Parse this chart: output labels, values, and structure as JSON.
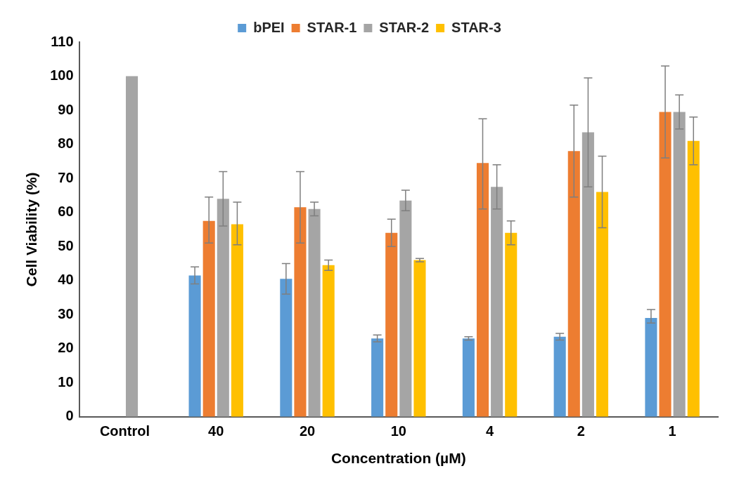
{
  "chart_data": {
    "type": "bar",
    "xlabel": "Concentration (µM)",
    "ylabel": "Cell Viability (%)",
    "categories": [
      "Control",
      "40",
      "20",
      "10",
      "4",
      "2",
      "1"
    ],
    "series": [
      {
        "name": "bPEI",
        "color": "#5b9bd5",
        "values": [
          null,
          41.5,
          40.5,
          23,
          23,
          23.5,
          29
        ],
        "errors": [
          null,
          [
            39,
            44
          ],
          [
            36,
            45
          ],
          [
            22,
            24
          ],
          [
            22.5,
            23.5
          ],
          [
            22.5,
            24.5
          ],
          [
            27.5,
            31.5
          ]
        ]
      },
      {
        "name": "STAR-1",
        "color": "#ed7d31",
        "values": [
          null,
          57.5,
          61.5,
          54,
          74.5,
          78,
          89.5
        ],
        "errors": [
          null,
          [
            51,
            64.5
          ],
          [
            51,
            72
          ],
          [
            50,
            58
          ],
          [
            61,
            87.5
          ],
          [
            64.5,
            91.5
          ],
          [
            76,
            103
          ]
        ]
      },
      {
        "name": "STAR-2",
        "color": "#a5a5a5",
        "values": [
          100,
          64,
          61,
          63.5,
          67.5,
          83.5,
          89.5
        ],
        "errors": [
          null,
          [
            56,
            72
          ],
          [
            59,
            63
          ],
          [
            60.5,
            66.5
          ],
          [
            61,
            74
          ],
          [
            67.5,
            99.5
          ],
          [
            84.5,
            94.5
          ]
        ]
      },
      {
        "name": "STAR-3",
        "color": "#ffc000",
        "values": [
          null,
          56.5,
          44.5,
          46,
          54,
          66,
          81
        ],
        "errors": [
          null,
          [
            50.5,
            63
          ],
          [
            43,
            46
          ],
          [
            45.5,
            46.5
          ],
          [
            50.5,
            57.5
          ],
          [
            55.5,
            76.5
          ],
          [
            74,
            88
          ]
        ]
      }
    ],
    "ylim": [
      0,
      110
    ],
    "yticks": [
      0,
      10,
      20,
      30,
      40,
      50,
      60,
      70,
      80,
      90,
      100,
      110
    ],
    "grid": false,
    "legend": "top"
  }
}
